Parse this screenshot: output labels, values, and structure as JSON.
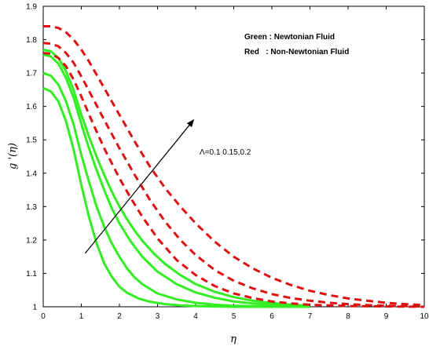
{
  "chart_data": {
    "type": "line",
    "xlabel": "η",
    "ylabel": "g '(η)",
    "xlim": [
      0,
      10
    ],
    "ylim": [
      1,
      1.9
    ],
    "xticks": [
      "0",
      "1",
      "2",
      "3",
      "4",
      "5",
      "6",
      "7",
      "8",
      "9",
      "10"
    ],
    "yticks": [
      "1",
      "1.1",
      "1.2",
      "1.3",
      "1.4",
      "1.5",
      "1.6",
      "1.7",
      "1.8",
      "1.9"
    ],
    "grid": false,
    "legend_position": "top-right",
    "legend": {
      "green": "Green : Newtonian Fluid",
      "red": "Red   : Non-Newtonian Fluid"
    },
    "annotation": {
      "text": "Λ=0.1 0.15,0.2",
      "arrow_from": [
        1.1,
        1.16
      ],
      "arrow_to": [
        3.95,
        1.56
      ]
    },
    "colors": {
      "green": "#33ee22",
      "red": "#dd1111"
    },
    "series": [
      {
        "color": "green",
        "style": "solid",
        "x": [
          0,
          0.2,
          0.4,
          0.6,
          0.8,
          1.0,
          1.2,
          1.4,
          1.6,
          1.8,
          2.0,
          2.2,
          2.5,
          2.8,
          3.2,
          3.6,
          4.0,
          4.5,
          5.0,
          6.0,
          7.0
        ],
        "y": [
          1.655,
          1.645,
          1.615,
          1.555,
          1.47,
          1.365,
          1.27,
          1.19,
          1.13,
          1.09,
          1.06,
          1.042,
          1.025,
          1.015,
          1.008,
          1.004,
          1.002,
          1.001,
          1.0,
          1.0,
          1.0
        ]
      },
      {
        "color": "green",
        "style": "solid",
        "x": [
          0,
          0.2,
          0.4,
          0.6,
          0.8,
          1.0,
          1.2,
          1.4,
          1.6,
          1.8,
          2.0,
          2.2,
          2.4,
          2.6,
          3.0,
          3.5,
          4.0,
          4.5,
          5.0,
          6.0,
          7.0
        ],
        "y": [
          1.7,
          1.692,
          1.665,
          1.615,
          1.545,
          1.455,
          1.375,
          1.3,
          1.24,
          1.19,
          1.15,
          1.115,
          1.088,
          1.068,
          1.04,
          1.022,
          1.012,
          1.006,
          1.003,
          1.001,
          1.0
        ]
      },
      {
        "color": "green",
        "style": "solid",
        "x": [
          0,
          0.2,
          0.4,
          0.6,
          0.8,
          1.0,
          1.2,
          1.4,
          1.6,
          1.8,
          2.0,
          2.3,
          2.6,
          3.0,
          3.5,
          4.0,
          4.5,
          5.0,
          5.5,
          6.0,
          7.0
        ],
        "y": [
          1.755,
          1.75,
          1.728,
          1.685,
          1.625,
          1.548,
          1.475,
          1.41,
          1.35,
          1.295,
          1.25,
          1.195,
          1.15,
          1.105,
          1.068,
          1.043,
          1.027,
          1.016,
          1.01,
          1.006,
          1.002
        ]
      },
      {
        "color": "green",
        "style": "solid",
        "x": [
          0,
          0.2,
          0.4,
          0.6,
          0.8,
          1.0,
          1.2,
          1.4,
          1.6,
          1.8,
          2.0,
          2.2,
          2.4,
          2.6,
          2.9,
          3.2,
          3.6,
          4.0,
          4.5,
          5.0,
          5.5,
          6.0,
          6.5,
          7.0
        ],
        "y": [
          1.77,
          1.765,
          1.745,
          1.705,
          1.648,
          1.575,
          1.51,
          1.45,
          1.395,
          1.345,
          1.3,
          1.262,
          1.228,
          1.198,
          1.16,
          1.128,
          1.095,
          1.068,
          1.045,
          1.029,
          1.018,
          1.011,
          1.006,
          1.003
        ]
      },
      {
        "color": "red",
        "style": "dashed",
        "x": [
          0,
          0.2,
          0.4,
          0.6,
          0.8,
          1.0,
          1.3,
          1.6,
          2.0,
          2.3,
          2.6,
          3.0,
          3.5,
          4.0,
          4.5,
          5.0,
          5.5,
          6.0,
          6.5,
          7.0,
          7.5,
          8.0,
          9.0,
          10.0
        ],
        "y": [
          1.76,
          1.758,
          1.745,
          1.72,
          1.68,
          1.63,
          1.55,
          1.475,
          1.385,
          1.325,
          1.27,
          1.205,
          1.14,
          1.095,
          1.062,
          1.04,
          1.026,
          1.016,
          1.01,
          1.006,
          1.004,
          1.002,
          1.001,
          1.0
        ]
      },
      {
        "color": "red",
        "style": "dashed",
        "x": [
          0,
          0.2,
          0.4,
          0.6,
          0.8,
          1.0,
          1.3,
          1.6,
          2.0,
          2.4,
          2.8,
          3.2,
          3.6,
          4.0,
          4.5,
          5.0,
          5.5,
          6.0,
          6.5,
          7.0,
          7.5,
          8.0,
          8.5,
          9.0,
          10.0
        ],
        "y": [
          1.79,
          1.788,
          1.78,
          1.76,
          1.73,
          1.69,
          1.625,
          1.56,
          1.475,
          1.395,
          1.32,
          1.255,
          1.2,
          1.155,
          1.11,
          1.078,
          1.055,
          1.038,
          1.026,
          1.018,
          1.012,
          1.008,
          1.005,
          1.003,
          1.001
        ]
      },
      {
        "color": "red",
        "style": "dashed",
        "x": [
          0,
          0.2,
          0.4,
          0.6,
          0.8,
          1.0,
          1.2,
          1.5,
          1.8,
          2.1,
          2.4,
          2.8,
          3.2,
          3.6,
          4.0,
          4.5,
          5.0,
          5.5,
          6.0,
          6.5,
          7.0,
          7.5,
          8.0,
          8.5,
          9.0,
          9.5,
          10.0
        ],
        "y": [
          1.84,
          1.84,
          1.835,
          1.822,
          1.8,
          1.77,
          1.735,
          1.675,
          1.615,
          1.555,
          1.495,
          1.42,
          1.355,
          1.3,
          1.25,
          1.195,
          1.15,
          1.115,
          1.087,
          1.065,
          1.048,
          1.035,
          1.025,
          1.018,
          1.012,
          1.008,
          1.005
        ]
      }
    ]
  }
}
